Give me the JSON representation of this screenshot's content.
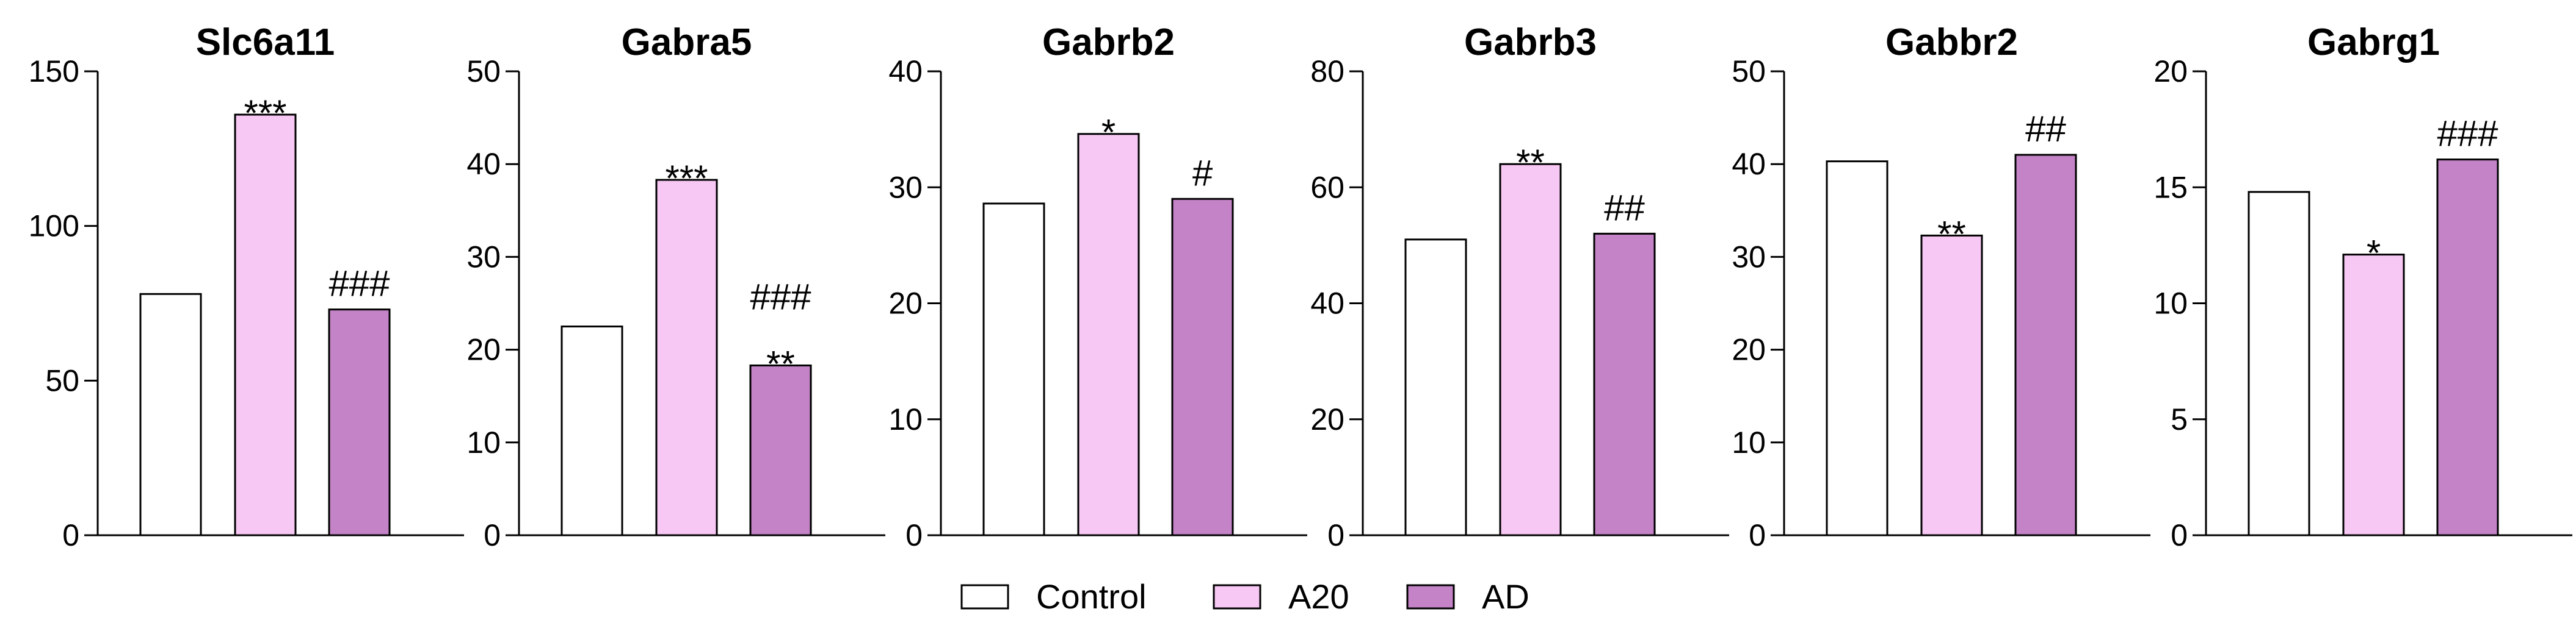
{
  "legend": {
    "items": [
      {
        "label": "Control",
        "color": "#ffffff"
      },
      {
        "label": "A20",
        "color": "#f7c8f4"
      },
      {
        "label": "AD",
        "color": "#c383c6"
      }
    ]
  },
  "chart_data": [
    {
      "type": "bar",
      "title": "Slc6a11",
      "categories": [
        "Control",
        "A20",
        "AD"
      ],
      "values": [
        78,
        136,
        73
      ],
      "ylim": [
        0,
        150
      ],
      "yticks": [
        0,
        50,
        100,
        150
      ],
      "annotations": [
        "",
        "***",
        "###"
      ]
    },
    {
      "type": "bar",
      "title": "Gabra5",
      "categories": [
        "Control",
        "A20",
        "AD"
      ],
      "values": [
        22.5,
        38.3,
        18.3
      ],
      "ylim": [
        0,
        50
      ],
      "yticks": [
        0,
        10,
        20,
        30,
        40,
        50
      ],
      "annotations": [
        "",
        "***",
        "###\n**"
      ]
    },
    {
      "type": "bar",
      "title": "Gabrb2",
      "categories": [
        "Control",
        "A20",
        "AD"
      ],
      "values": [
        28.6,
        34.6,
        29.0
      ],
      "ylim": [
        0,
        40
      ],
      "yticks": [
        0,
        10,
        20,
        30,
        40
      ],
      "annotations": [
        "",
        "*",
        "#"
      ]
    },
    {
      "type": "bar",
      "title": "Gabrb3",
      "categories": [
        "Control",
        "A20",
        "AD"
      ],
      "values": [
        51,
        64,
        52
      ],
      "ylim": [
        0,
        80
      ],
      "yticks": [
        0,
        20,
        40,
        60,
        80
      ],
      "annotations": [
        "",
        "**",
        "##"
      ]
    },
    {
      "type": "bar",
      "title": "Gabbr2",
      "categories": [
        "Control",
        "A20",
        "AD"
      ],
      "values": [
        40.3,
        32.3,
        41.0
      ],
      "ylim": [
        0,
        50
      ],
      "yticks": [
        0,
        10,
        20,
        30,
        40,
        50
      ],
      "annotations": [
        "",
        "**",
        "##"
      ]
    },
    {
      "type": "bar",
      "title": "Gabrg1",
      "categories": [
        "Control",
        "A20",
        "AD"
      ],
      "values": [
        14.8,
        12.1,
        16.2
      ],
      "ylim": [
        0,
        20
      ],
      "yticks": [
        0,
        5,
        10,
        15,
        20
      ],
      "annotations": [
        "",
        "*",
        "###"
      ]
    }
  ]
}
